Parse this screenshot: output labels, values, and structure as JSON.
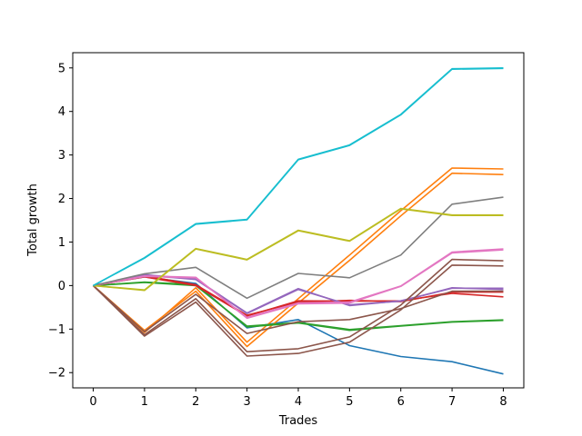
{
  "chart_data": {
    "type": "line",
    "title": "",
    "xlabel": "Trades",
    "ylabel": "Total growth",
    "xlim": [
      -0.4,
      8.4
    ],
    "ylim": [
      -2.35,
      5.35
    ],
    "xticks": [
      0,
      1,
      2,
      3,
      4,
      5,
      6,
      7,
      8
    ],
    "yticks": [
      -2,
      -1,
      0,
      1,
      2,
      3,
      4,
      5
    ],
    "x": [
      0,
      1,
      2,
      3,
      4,
      5,
      6,
      7,
      8
    ],
    "grid": false,
    "legend": "none",
    "series": [
      {
        "color": "#1f77b4",
        "values": [
          0,
          0.2,
          0.05,
          -0.97,
          -0.78,
          -1.38,
          -1.63,
          -1.75,
          -2.03
        ]
      },
      {
        "color": "#ff7f0e",
        "values": [
          0,
          -1.03,
          -0.13,
          -1.4,
          -0.4,
          0.58,
          1.6,
          2.58,
          2.55
        ]
      },
      {
        "color": "#ff7f0e",
        "values": [
          0,
          -1.08,
          -0.05,
          -1.3,
          -0.3,
          0.7,
          1.72,
          2.7,
          2.68
        ]
      },
      {
        "color": "#2ca02c",
        "values": [
          0,
          0.08,
          0.02,
          -0.95,
          -0.86,
          -1.03,
          -0.93,
          -0.84,
          -0.8
        ]
      },
      {
        "color": "#2ca02c",
        "values": [
          0,
          0.07,
          0.0,
          -0.93,
          -0.85,
          -1.01,
          -0.92,
          -0.83,
          -0.79
        ]
      },
      {
        "color": "#d62728",
        "values": [
          0,
          0.2,
          0.0,
          -0.7,
          -0.35,
          -0.36,
          -0.35,
          -0.18,
          -0.26
        ]
      },
      {
        "color": "#d62728",
        "values": [
          0,
          0.22,
          0.02,
          -0.68,
          -0.38,
          -0.34,
          -0.37,
          -0.15,
          -0.15
        ]
      },
      {
        "color": "#9467bd",
        "values": [
          0,
          0.25,
          0.15,
          -0.63,
          -0.07,
          -0.46,
          -0.35,
          -0.06,
          -0.06
        ]
      },
      {
        "color": "#9467bd",
        "values": [
          0,
          0.24,
          0.14,
          -0.64,
          -0.09,
          -0.44,
          -0.36,
          -0.05,
          -0.09
        ]
      },
      {
        "color": "#8c564b",
        "values": [
          0,
          -1.16,
          -0.38,
          -1.62,
          -1.56,
          -1.3,
          -0.56,
          0.47,
          0.45
        ]
      },
      {
        "color": "#8c564b",
        "values": [
          0,
          -1.13,
          -0.3,
          -1.52,
          -1.45,
          -1.18,
          -0.45,
          0.6,
          0.57
        ]
      },
      {
        "color": "#8c564b",
        "values": [
          0,
          -1.06,
          -0.2,
          -1.1,
          -0.83,
          -0.78,
          -0.53,
          -0.13,
          -0.13
        ]
      },
      {
        "color": "#e377c2",
        "values": [
          0,
          0.22,
          0.19,
          -0.75,
          -0.42,
          -0.4,
          -0.02,
          0.75,
          0.82
        ]
      },
      {
        "color": "#e377c2",
        "values": [
          0,
          0.21,
          0.18,
          -0.73,
          -0.4,
          -0.38,
          -0.01,
          0.77,
          0.84
        ]
      },
      {
        "color": "#7f7f7f",
        "values": [
          0,
          0.27,
          0.42,
          -0.29,
          0.28,
          0.18,
          0.7,
          1.87,
          2.03
        ]
      },
      {
        "color": "#bcbd22",
        "values": [
          0,
          -0.1,
          0.85,
          0.6,
          1.27,
          1.03,
          1.77,
          1.62,
          1.62
        ]
      },
      {
        "color": "#bcbd22",
        "values": [
          0,
          -0.11,
          0.84,
          0.59,
          1.26,
          1.02,
          1.76,
          1.61,
          1.61
        ]
      },
      {
        "color": "#17becf",
        "values": [
          0,
          0.64,
          1.42,
          1.52,
          2.9,
          3.23,
          3.93,
          4.98,
          5.0
        ]
      },
      {
        "color": "#17becf",
        "values": [
          0,
          0.63,
          1.41,
          1.51,
          2.89,
          3.22,
          3.92,
          4.97,
          4.99
        ]
      }
    ]
  }
}
